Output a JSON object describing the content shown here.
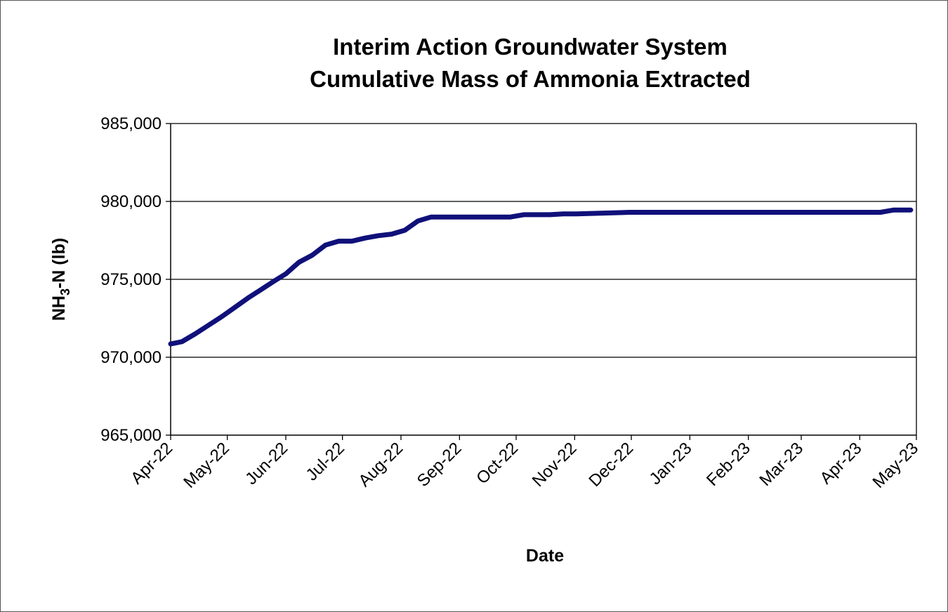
{
  "chart_data": {
    "type": "line",
    "title_lines": [
      "Interim Action Groundwater System",
      "Cumulative Mass of Ammonia Extracted"
    ],
    "xlabel": "Date",
    "ylabel_main": "NH",
    "ylabel_sub": "3",
    "ylabel_rest": "-N  (lb)",
    "ylim": [
      965000,
      985000
    ],
    "yticks": [
      965000,
      970000,
      975000,
      980000,
      985000
    ],
    "ytick_labels": [
      "965,000",
      "970,000",
      "975,000",
      "980,000",
      "985,000"
    ],
    "xlim": [
      "2022-04-01",
      "2023-05-01"
    ],
    "xtick_dates": [
      "2022-04-01",
      "2022-05-01",
      "2022-06-01",
      "2022-07-01",
      "2022-08-01",
      "2022-09-01",
      "2022-10-01",
      "2022-11-01",
      "2022-12-01",
      "2023-01-01",
      "2023-02-01",
      "2023-03-01",
      "2023-04-01",
      "2023-05-01"
    ],
    "xtick_labels": [
      "Apr-22",
      "May-22",
      "Jun-22",
      "Jul-22",
      "Aug-22",
      "Sep-22",
      "Oct-22",
      "Nov-22",
      "Dec-22",
      "Jan-23",
      "Feb-23",
      "Mar-23",
      "Apr-23",
      "May-23"
    ],
    "grid": "horizontal",
    "legend": "none",
    "line_color": "#10107a",
    "series": [
      {
        "x": [
          "2022-04-01",
          "2022-04-07",
          "2022-04-14",
          "2022-04-21",
          "2022-04-28",
          "2022-05-05",
          "2022-05-12",
          "2022-05-19",
          "2022-05-26",
          "2022-06-01",
          "2022-06-08",
          "2022-06-15",
          "2022-06-22",
          "2022-06-29",
          "2022-07-06",
          "2022-07-13",
          "2022-07-20",
          "2022-07-27",
          "2022-08-03",
          "2022-08-10",
          "2022-08-17",
          "2022-08-24",
          "2022-08-31",
          "2022-09-14",
          "2022-09-21",
          "2022-09-28",
          "2022-10-05",
          "2022-10-19",
          "2022-10-26",
          "2022-11-02",
          "2022-11-30",
          "2022-12-28",
          "2023-01-25",
          "2023-02-22",
          "2023-03-22",
          "2023-04-05",
          "2023-04-12",
          "2023-04-19",
          "2023-04-28"
        ],
        "y": [
          970850,
          971000,
          971500,
          972050,
          972600,
          973200,
          973800,
          974350,
          974900,
          975350,
          976100,
          976550,
          977200,
          977450,
          977450,
          977650,
          977800,
          977900,
          978150,
          978750,
          979000,
          979000,
          979000,
          979000,
          979000,
          979000,
          979150,
          979150,
          979200,
          979200,
          979300,
          979300,
          979300,
          979300,
          979300,
          979300,
          979300,
          979450,
          979450
        ]
      }
    ]
  }
}
